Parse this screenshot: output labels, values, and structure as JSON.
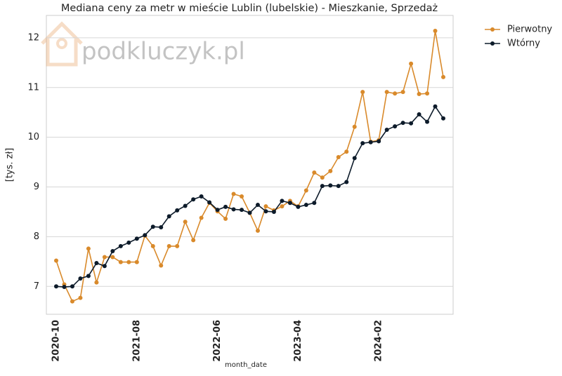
{
  "chart_data": {
    "type": "line",
    "title": "Mediana ceny za metr w mieście Lublin (lubelskie) - Mieszkanie, Sprzedaż",
    "watermark": "podkluczyk.pl",
    "x_label": "month_date",
    "y_label": "[tys. zł]",
    "categories": [
      "2020-10",
      null,
      null,
      null,
      null,
      null,
      null,
      null,
      null,
      null,
      "2021-08",
      null,
      null,
      null,
      null,
      null,
      null,
      null,
      null,
      null,
      "2022-06",
      null,
      null,
      null,
      null,
      null,
      null,
      null,
      null,
      null,
      "2023-04",
      null,
      null,
      null,
      null,
      null,
      null,
      null,
      null,
      null,
      "2024-02",
      null,
      null,
      null,
      null,
      null,
      null,
      null,
      null
    ],
    "series": [
      {
        "name": "Pierwotny",
        "color": "#d98a2b",
        "values": [
          7.52,
          7.04,
          6.7,
          6.77,
          7.76,
          7.08,
          7.59,
          7.59,
          7.49,
          7.49,
          7.49,
          8.02,
          7.81,
          7.42,
          7.81,
          7.81,
          8.3,
          7.93,
          8.38,
          8.68,
          8.51,
          8.36,
          8.86,
          8.81,
          8.48,
          8.12,
          8.61,
          8.53,
          8.61,
          8.72,
          8.61,
          8.93,
          9.29,
          9.19,
          9.32,
          9.6,
          9.71,
          10.21,
          10.91,
          9.91,
          9.94,
          10.91,
          10.88,
          10.91,
          11.48,
          10.87,
          10.88,
          12.14,
          11.21
        ]
      },
      {
        "name": "Wtórny",
        "color": "#0d1b2a",
        "values": [
          7.0,
          6.99,
          7.0,
          7.16,
          7.21,
          7.47,
          7.41,
          7.71,
          7.81,
          7.88,
          7.96,
          8.03,
          8.2,
          8.19,
          8.41,
          8.53,
          8.62,
          8.75,
          8.81,
          8.69,
          8.54,
          8.6,
          8.55,
          8.54,
          8.48,
          8.64,
          8.51,
          8.5,
          8.72,
          8.68,
          8.6,
          8.64,
          8.68,
          9.02,
          9.03,
          9.02,
          9.1,
          9.58,
          9.88,
          9.9,
          9.92,
          10.15,
          10.22,
          10.29,
          10.28,
          10.46,
          10.31,
          10.62,
          10.38
        ]
      }
    ],
    "ylim": [
      6.44,
      12.45
    ],
    "yticks": [
      7,
      8,
      9,
      10,
      11,
      12
    ],
    "grid": true,
    "legend": "outside-right"
  }
}
